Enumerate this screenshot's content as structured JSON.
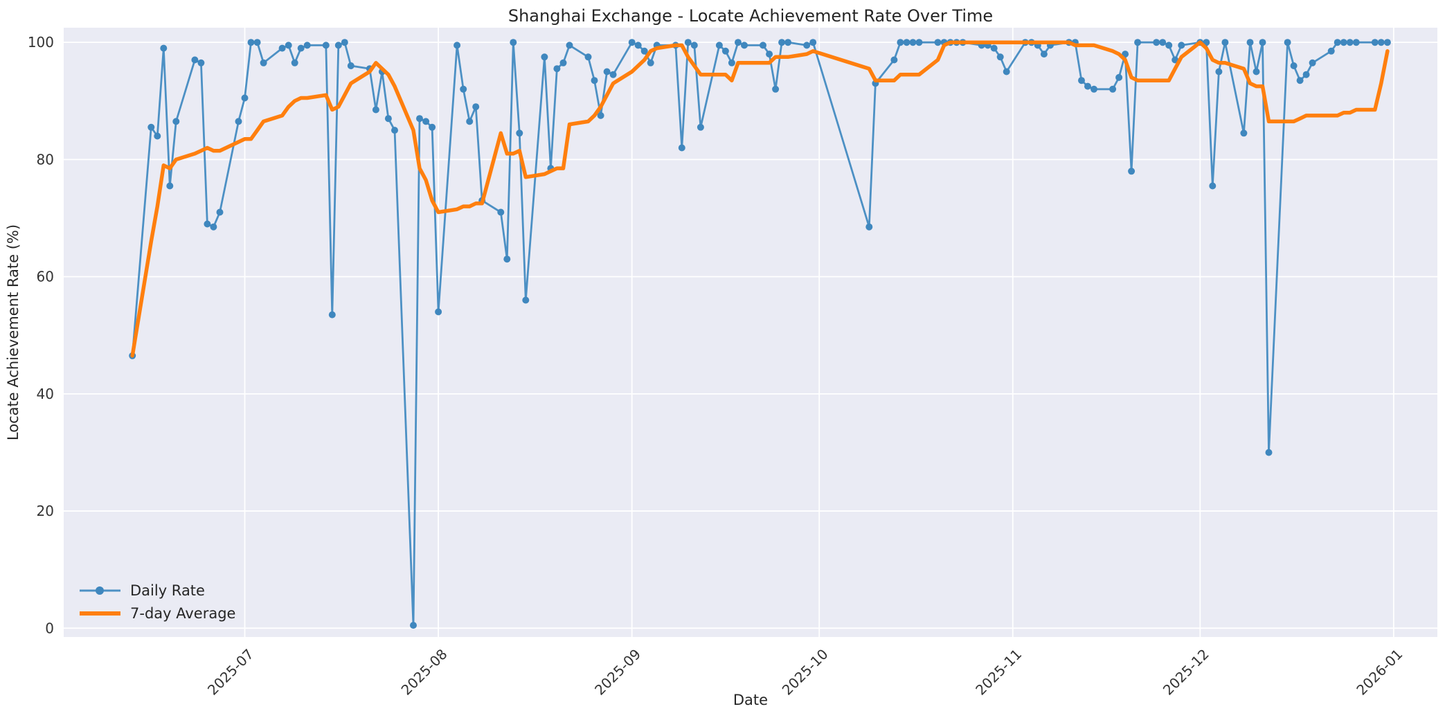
{
  "title": "Shanghai Exchange - Locate Achievement Rate Over Time",
  "axes": {
    "x_label": "Date",
    "y_label": "Locate Achievement Rate (%)"
  },
  "colors": {
    "figure_bg": "#ffffff",
    "plot_bg": "#eaebf4",
    "grid": "#ffffff",
    "daily": "#4c90c4",
    "daily_marker": "#3f87be",
    "average": "#ff7f0e",
    "text": "#262626",
    "tick_text": "#333333"
  },
  "chart_data": {
    "type": "line",
    "title": "Shanghai Exchange - Locate Achievement Rate Over Time",
    "xlabel": "Date",
    "ylabel": "Locate Achievement Rate (%)",
    "legend_position": "lower left",
    "grid": true,
    "ylim": [
      -1.5,
      102.5
    ],
    "xlim": [
      "2025-06-02",
      "2026-01-08"
    ],
    "y_ticks": [
      0,
      20,
      40,
      60,
      80,
      100
    ],
    "x_ticks": [
      {
        "label": "2025-07",
        "date": "2025-07-01"
      },
      {
        "label": "2025-08",
        "date": "2025-08-01"
      },
      {
        "label": "2025-09",
        "date": "2025-09-01"
      },
      {
        "label": "2025-10",
        "date": "2025-10-01"
      },
      {
        "label": "2025-11",
        "date": "2025-11-01"
      },
      {
        "label": "2025-12",
        "date": "2025-12-01"
      },
      {
        "label": "2026-01",
        "date": "2026-01-01"
      }
    ],
    "series": [
      {
        "name": "Daily Rate",
        "data_name": "daily-rate-line",
        "color": "#4c90c4",
        "marker_color": "#3f87be",
        "marker": true,
        "line_width": 2.8,
        "dates": [
          "2025-06-13",
          "2025-06-16",
          "2025-06-17",
          "2025-06-18",
          "2025-06-19",
          "2025-06-20",
          "2025-06-23",
          "2025-06-24",
          "2025-06-25",
          "2025-06-26",
          "2025-06-27",
          "2025-06-30",
          "2025-07-01",
          "2025-07-02",
          "2025-07-03",
          "2025-07-04",
          "2025-07-07",
          "2025-07-08",
          "2025-07-09",
          "2025-07-10",
          "2025-07-11",
          "2025-07-14",
          "2025-07-15",
          "2025-07-16",
          "2025-07-17",
          "2025-07-18",
          "2025-07-21",
          "2025-07-22",
          "2025-07-23",
          "2025-07-24",
          "2025-07-25",
          "2025-07-28",
          "2025-07-29",
          "2025-07-30",
          "2025-07-31",
          "2025-08-01",
          "2025-08-04",
          "2025-08-05",
          "2025-08-06",
          "2025-08-07",
          "2025-08-08",
          "2025-08-11",
          "2025-08-12",
          "2025-08-13",
          "2025-08-14",
          "2025-08-15",
          "2025-08-18",
          "2025-08-19",
          "2025-08-20",
          "2025-08-21",
          "2025-08-22",
          "2025-08-25",
          "2025-08-26",
          "2025-08-27",
          "2025-08-28",
          "2025-08-29",
          "2025-09-01",
          "2025-09-02",
          "2025-09-03",
          "2025-09-04",
          "2025-09-05",
          "2025-09-08",
          "2025-09-09",
          "2025-09-10",
          "2025-09-11",
          "2025-09-12",
          "2025-09-15",
          "2025-09-16",
          "2025-09-17",
          "2025-09-18",
          "2025-09-19",
          "2025-09-22",
          "2025-09-23",
          "2025-09-24",
          "2025-09-25",
          "2025-09-26",
          "2025-09-29",
          "2025-09-30",
          "2025-10-09",
          "2025-10-10",
          "2025-10-13",
          "2025-10-14",
          "2025-10-15",
          "2025-10-16",
          "2025-10-17",
          "2025-10-20",
          "2025-10-21",
          "2025-10-22",
          "2025-10-23",
          "2025-10-24",
          "2025-10-27",
          "2025-10-28",
          "2025-10-29",
          "2025-10-30",
          "2025-10-31",
          "2025-11-03",
          "2025-11-04",
          "2025-11-05",
          "2025-11-06",
          "2025-11-07",
          "2025-11-10",
          "2025-11-11",
          "2025-11-12",
          "2025-11-13",
          "2025-11-14",
          "2025-11-17",
          "2025-11-18",
          "2025-11-19",
          "2025-11-20",
          "2025-11-21",
          "2025-11-24",
          "2025-11-25",
          "2025-11-26",
          "2025-11-27",
          "2025-11-28",
          "2025-12-01",
          "2025-12-02",
          "2025-12-03",
          "2025-12-04",
          "2025-12-05",
          "2025-12-08",
          "2025-12-09",
          "2025-12-10",
          "2025-12-11",
          "2025-12-12",
          "2025-12-15",
          "2025-12-16",
          "2025-12-17",
          "2025-12-18",
          "2025-12-19",
          "2025-12-22",
          "2025-12-23",
          "2025-12-24",
          "2025-12-25",
          "2025-12-26",
          "2025-12-29",
          "2025-12-30",
          "2025-12-31"
        ],
        "values": [
          46.5,
          85.5,
          84,
          99,
          75.5,
          86.5,
          97,
          96.5,
          69,
          68.5,
          71,
          86.5,
          90.5,
          100,
          100,
          96.5,
          99,
          99.5,
          96.5,
          99,
          99.5,
          99.5,
          53.5,
          99.5,
          100,
          96,
          95.5,
          88.5,
          95,
          87,
          85,
          0.5,
          87,
          86.5,
          85.5,
          54,
          99.5,
          92,
          86.5,
          89,
          73,
          71,
          63,
          100,
          84.5,
          56,
          97.5,
          78.5,
          95.5,
          96.5,
          99.5,
          97.5,
          93.5,
          87.5,
          95,
          94.5,
          100,
          99.5,
          98.5,
          96.5,
          99.5,
          99.5,
          82,
          100,
          99.5,
          85.5,
          99.5,
          98.5,
          96.5,
          100,
          99.5,
          99.5,
          98,
          92,
          100,
          100,
          99.5,
          100,
          68.5,
          93,
          97,
          100,
          100,
          100,
          100,
          100,
          100,
          100,
          100,
          100,
          99.5,
          99.5,
          99,
          97.5,
          95,
          100,
          100,
          99.5,
          98,
          99.5,
          100,
          100,
          93.5,
          92.5,
          92,
          92,
          94,
          98,
          78,
          100,
          100,
          100,
          99.5,
          97,
          99.5,
          100,
          100,
          75.5,
          95,
          100,
          84.5,
          100,
          95,
          100,
          30,
          100,
          96,
          93.5,
          94.5,
          96.5,
          98.5,
          100,
          100,
          100,
          100,
          100,
          100,
          100
        ]
      },
      {
        "name": "7-day Average",
        "data_name": "seven-day-average-line",
        "color": "#ff7f0e",
        "marker": false,
        "line_width": 5.5,
        "dates": [
          "2025-06-13",
          "2025-06-16",
          "2025-06-17",
          "2025-06-18",
          "2025-06-19",
          "2025-06-20",
          "2025-06-23",
          "2025-06-24",
          "2025-06-25",
          "2025-06-26",
          "2025-06-27",
          "2025-06-30",
          "2025-07-01",
          "2025-07-02",
          "2025-07-03",
          "2025-07-04",
          "2025-07-07",
          "2025-07-08",
          "2025-07-09",
          "2025-07-10",
          "2025-07-11",
          "2025-07-14",
          "2025-07-15",
          "2025-07-16",
          "2025-07-17",
          "2025-07-18",
          "2025-07-21",
          "2025-07-22",
          "2025-07-23",
          "2025-07-24",
          "2025-07-25",
          "2025-07-28",
          "2025-07-29",
          "2025-07-30",
          "2025-07-31",
          "2025-08-01",
          "2025-08-04",
          "2025-08-05",
          "2025-08-06",
          "2025-08-07",
          "2025-08-08",
          "2025-08-11",
          "2025-08-12",
          "2025-08-13",
          "2025-08-14",
          "2025-08-15",
          "2025-08-18",
          "2025-08-19",
          "2025-08-20",
          "2025-08-21",
          "2025-08-22",
          "2025-08-25",
          "2025-08-26",
          "2025-08-27",
          "2025-08-28",
          "2025-08-29",
          "2025-09-01",
          "2025-09-02",
          "2025-09-03",
          "2025-09-04",
          "2025-09-05",
          "2025-09-08",
          "2025-09-09",
          "2025-09-10",
          "2025-09-11",
          "2025-09-12",
          "2025-09-15",
          "2025-09-16",
          "2025-09-17",
          "2025-09-18",
          "2025-09-19",
          "2025-09-22",
          "2025-09-23",
          "2025-09-24",
          "2025-09-25",
          "2025-09-26",
          "2025-09-29",
          "2025-09-30",
          "2025-10-09",
          "2025-10-10",
          "2025-10-13",
          "2025-10-14",
          "2025-10-15",
          "2025-10-16",
          "2025-10-17",
          "2025-10-20",
          "2025-10-21",
          "2025-10-22",
          "2025-10-23",
          "2025-10-24",
          "2025-10-27",
          "2025-10-28",
          "2025-10-29",
          "2025-10-30",
          "2025-10-31",
          "2025-11-03",
          "2025-11-04",
          "2025-11-05",
          "2025-11-06",
          "2025-11-07",
          "2025-11-10",
          "2025-11-11",
          "2025-11-12",
          "2025-11-13",
          "2025-11-14",
          "2025-11-17",
          "2025-11-18",
          "2025-11-19",
          "2025-11-20",
          "2025-11-21",
          "2025-11-24",
          "2025-11-25",
          "2025-11-26",
          "2025-11-27",
          "2025-11-28",
          "2025-12-01",
          "2025-12-02",
          "2025-12-03",
          "2025-12-04",
          "2025-12-05",
          "2025-12-08",
          "2025-12-09",
          "2025-12-10",
          "2025-12-11",
          "2025-12-12",
          "2025-12-15",
          "2025-12-16",
          "2025-12-17",
          "2025-12-18",
          "2025-12-19",
          "2025-12-22",
          "2025-12-23",
          "2025-12-24",
          "2025-12-25",
          "2025-12-26",
          "2025-12-29",
          "2025-12-30",
          "2025-12-31"
        ],
        "values": [
          46.5,
          66,
          72,
          79,
          78.5,
          80,
          81,
          81.5,
          82,
          81.5,
          81.5,
          83,
          83.5,
          83.5,
          85,
          86.5,
          87.5,
          89,
          90,
          90.5,
          90.5,
          91,
          88.5,
          89,
          91,
          93,
          95,
          96.5,
          95.5,
          94.5,
          92.5,
          85,
          78.5,
          76.5,
          73,
          71,
          71.5,
          72,
          72,
          72.5,
          72.5,
          84.5,
          81,
          81,
          81.5,
          77,
          77.5,
          78,
          78.5,
          78.5,
          86,
          86.5,
          87.5,
          89,
          91,
          93,
          95,
          96,
          97,
          98.5,
          99,
          99.5,
          99.5,
          97.5,
          96,
          94.5,
          94.5,
          94.5,
          93.5,
          96.5,
          96.5,
          96.5,
          96.5,
          97.5,
          97.5,
          97.5,
          98,
          98.5,
          95.5,
          93.5,
          93.5,
          94.5,
          94.5,
          94.5,
          94.5,
          97,
          99.5,
          100,
          100,
          100,
          100,
          100,
          100,
          100,
          100,
          100,
          100,
          100,
          100,
          100,
          100,
          99.5,
          99.5,
          99.5,
          99.5,
          98.5,
          98,
          97,
          94,
          93.5,
          93.5,
          93.5,
          93.5,
          95.5,
          97.5,
          100,
          99,
          97,
          96.5,
          96.5,
          95.5,
          93,
          92.5,
          92.5,
          86.5,
          86.5,
          86.5,
          87,
          87.5,
          87.5,
          87.5,
          87.5,
          88,
          88,
          88.5,
          88.5,
          93,
          98.5
        ]
      }
    ]
  }
}
